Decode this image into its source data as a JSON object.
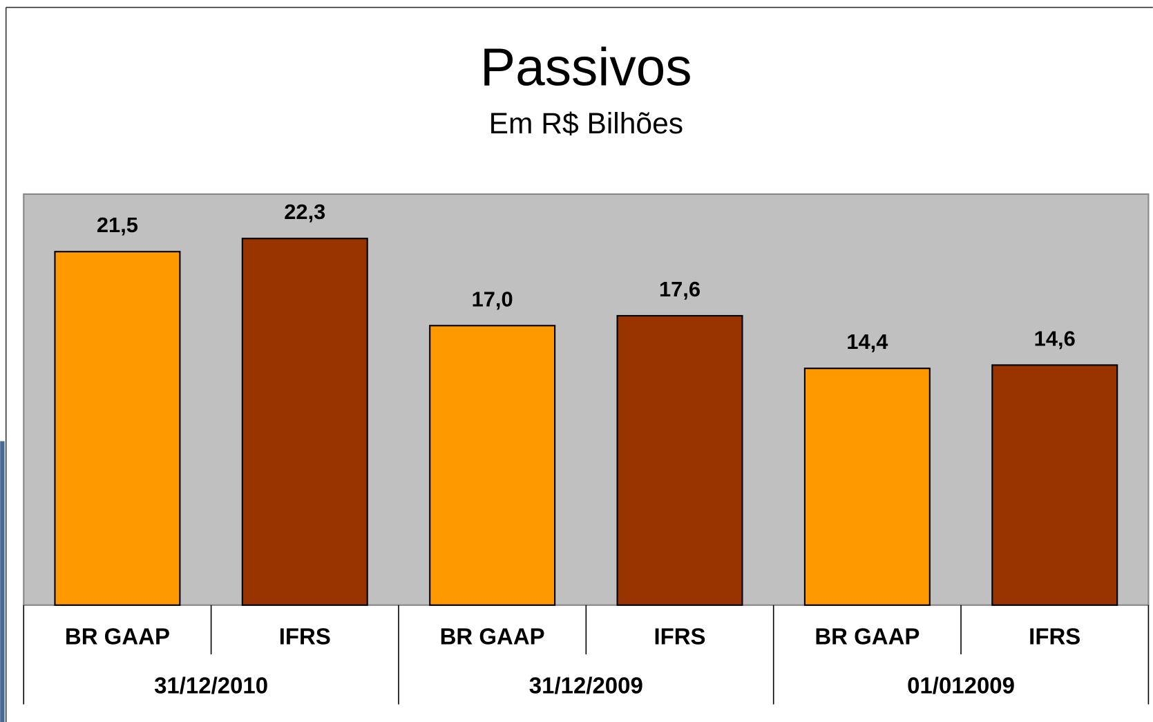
{
  "chart_data": {
    "type": "bar",
    "title": "Passivos",
    "subtitle": "Em R$ Bilhões",
    "categories": [
      "BR GAAP",
      "IFRS",
      "BR GAAP",
      "IFRS",
      "BR GAAP",
      "IFRS"
    ],
    "groups": [
      "31/12/2010",
      "31/12/2009",
      "01/012009"
    ],
    "values": [
      21.5,
      22.3,
      17.0,
      17.6,
      14.4,
      14.6
    ],
    "value_labels": [
      "21,5",
      "22,3",
      "17,0",
      "17,6",
      "14,4",
      "14,6"
    ],
    "colors": [
      "#ff9900",
      "#993300",
      "#ff9900",
      "#993300",
      "#ff9900",
      "#993300"
    ],
    "ylim": [
      0,
      25
    ]
  }
}
